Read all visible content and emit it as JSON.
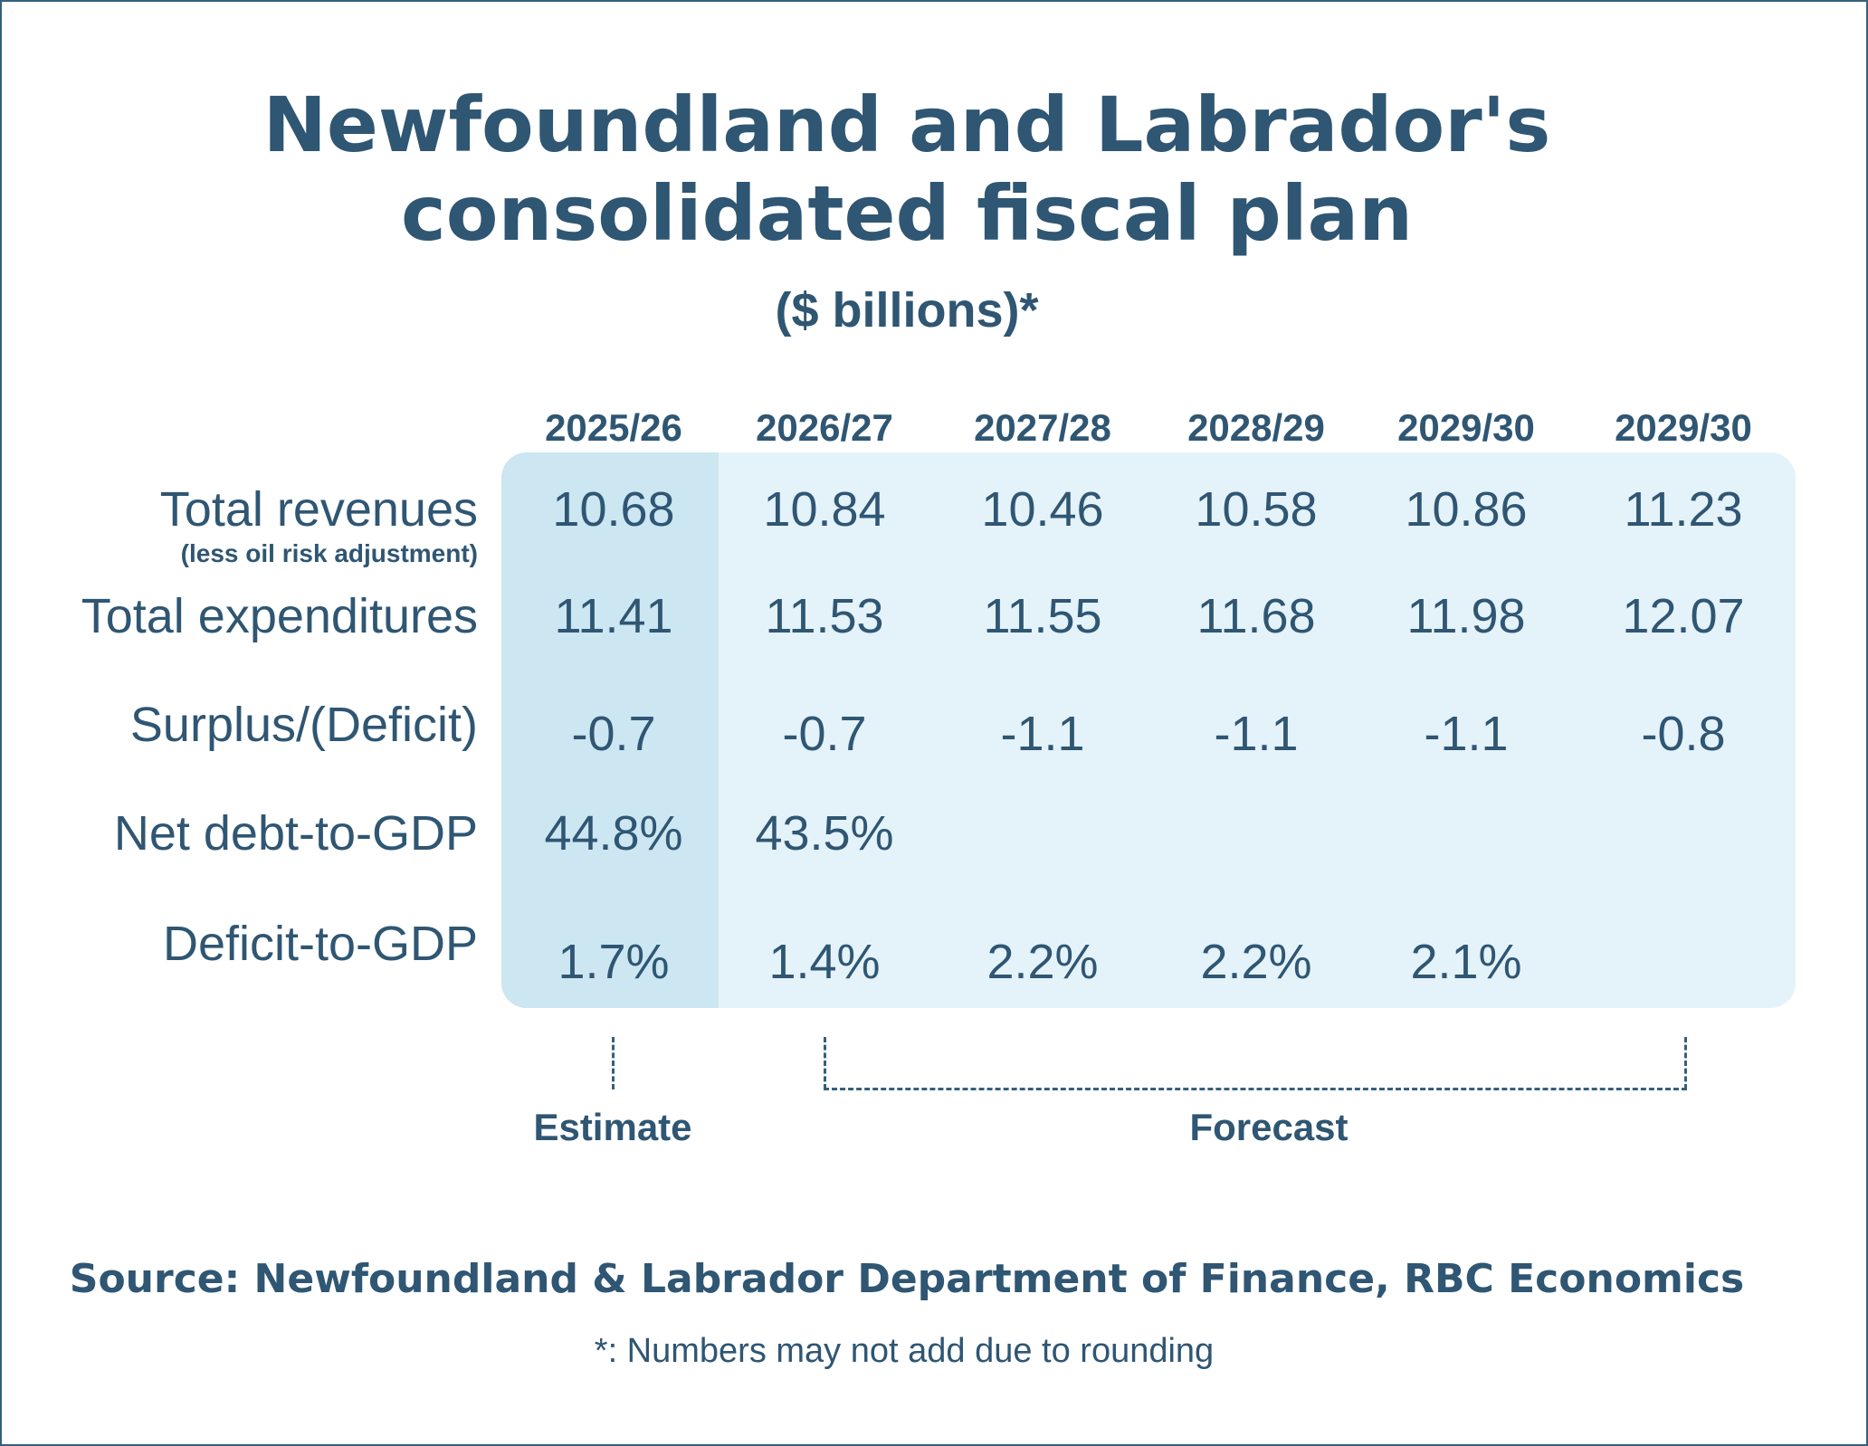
{
  "chart_data": {
    "type": "table",
    "title_line1": "Newfoundland and Labrador's",
    "title_line2": "consolidated fiscal plan",
    "subtitle": "($ billions)*",
    "columns": [
      "2025/26",
      "2026/27",
      "2027/28",
      "2028/29",
      "2029/30",
      "2029/30"
    ],
    "rows": [
      {
        "label": "Total revenues",
        "sublabel": "(less oil risk adjustment)",
        "values": [
          "10.68",
          "10.84",
          "10.46",
          "10.58",
          "10.86",
          "11.23"
        ]
      },
      {
        "label": "Total expenditures",
        "values": [
          "11.41",
          "11.53",
          "11.55",
          "11.68",
          "11.98",
          "12.07"
        ]
      },
      {
        "label": "Surplus/(Deficit)",
        "values": [
          "-0.7",
          "-0.7",
          "-1.1",
          "-1.1",
          "-1.1",
          "-0.8"
        ]
      },
      {
        "label": "Net debt-to-GDP",
        "values": [
          "44.8%",
          "43.5%",
          "",
          "",
          "",
          ""
        ]
      },
      {
        "label": "Deficit-to-GDP",
        "values": [
          "1.7%",
          "1.4%",
          "2.2%",
          "2.2%",
          "2.1%",
          ""
        ]
      }
    ],
    "periods": {
      "estimate": "Estimate",
      "forecast": "Forecast"
    },
    "source": "Source: Newfoundland & Labrador Department of Finance, RBC Economics",
    "footnote": "*: Numbers may not add due to rounding",
    "colors": {
      "text": "#2f5673",
      "estimate_fill": "#cce6f2",
      "forecast_fill": "#e4f2f9",
      "border": "#35607c"
    }
  }
}
